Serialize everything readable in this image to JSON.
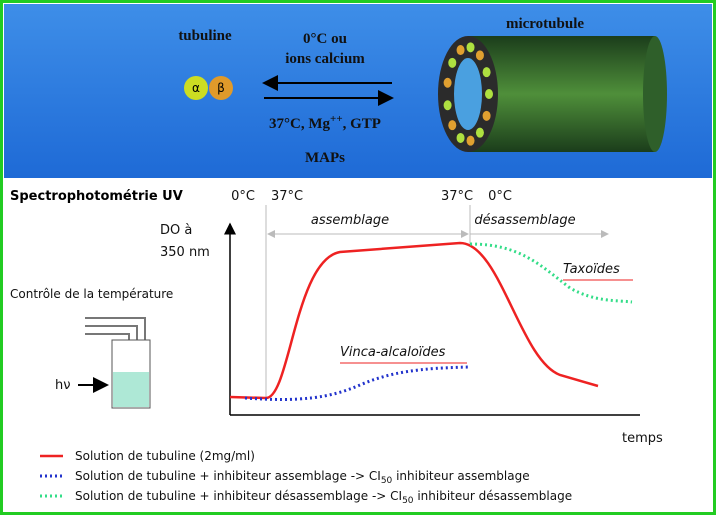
{
  "top": {
    "tubulin_label": "tubuline",
    "alpha": "α",
    "beta": "β",
    "depolymerize_line1": "0°C ou",
    "depolymerize_line2": "ions calcium",
    "polymerize": {
      "prefix": "37°C, Mg",
      "superscript": "++",
      "suffix": ", GTP"
    },
    "maps": "MAPs",
    "microtubule_label": "microtubule"
  },
  "graph": {
    "title": "Spectrophotométrie UV",
    "temp_left_1": "0°C",
    "temp_left_2": "37°C",
    "temp_right_1": "37°C",
    "temp_right_2": "0°C",
    "phase_assembly": "assemblage",
    "phase_disassembly": "désassemblage",
    "y_label_1": "DO à",
    "y_label_2": "350 nm",
    "taxoids": "Taxoïdes",
    "vinca": "Vinca-alcaloïdes",
    "temperature_control": "Contrôle de la température",
    "light": "hν",
    "x_label": "temps"
  },
  "legend": [
    {
      "text": "Solution de tubuline (2mg/ml)"
    },
    {
      "text": "Solution de tubuline + inhibiteur assemblage  -> CI",
      "subscript": "50",
      "suffix": " inhibiteur assemblage"
    },
    {
      "text": "Solution de tubuline + inhibiteur désassemblage -> CI",
      "subscript": "50",
      "suffix": " inhibiteur désassemblage"
    }
  ]
}
